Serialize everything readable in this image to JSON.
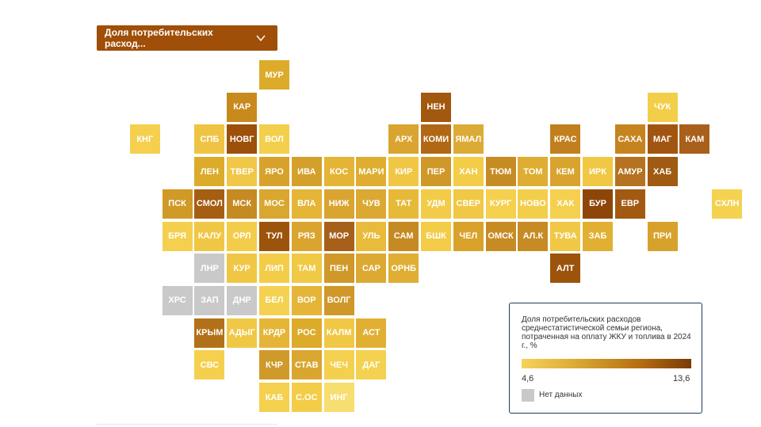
{
  "indicator_dropdown": {
    "label": "Доля потребительских расход...",
    "chevron_icon": "chevron-down-icon"
  },
  "legend": {
    "title": "Доля потребительских расходов среднестатистической семьи региона, потраченная на оплату ЖКУ и топлива в 2024 г., %",
    "min": "4,6",
    "max": "13,6",
    "no_data_label": "Нет данных",
    "no_data_color": "#c9c9c9",
    "scale_colors": [
      "#f5d45a",
      "#d8a530",
      "#b56d12",
      "#7a3a05"
    ]
  },
  "regions": [
    {
      "label": "МУР",
      "row": 1,
      "col": 6,
      "color": "#dcab2a"
    },
    {
      "label": "КАР",
      "row": 2,
      "col": 5,
      "color": "#c88a1c"
    },
    {
      "label": "НЕН",
      "row": 2,
      "col": 11,
      "color": "#a35810"
    },
    {
      "label": "ЧУК",
      "row": 2,
      "col": 18,
      "color": "#f3ce48"
    },
    {
      "label": "КНГ",
      "row": 3,
      "col": 2,
      "color": "#f4d04e"
    },
    {
      "label": "СПБ",
      "row": 3,
      "col": 4,
      "color": "#efc444"
    },
    {
      "label": "НОВГ",
      "row": 3,
      "col": 5,
      "color": "#9c500a"
    },
    {
      "label": "ВОЛ",
      "row": 3,
      "col": 6,
      "color": "#f3cf4c"
    },
    {
      "label": "АРХ",
      "row": 3,
      "col": 10,
      "color": "#d9a530"
    },
    {
      "label": "КОМИ",
      "row": 3,
      "col": 11,
      "color": "#b06814"
    },
    {
      "label": "ЯМАЛ",
      "row": 3,
      "col": 12,
      "color": "#dcab35"
    },
    {
      "label": "КРАС",
      "row": 3,
      "col": 15,
      "color": "#c27f1d"
    },
    {
      "label": "САХА",
      "row": 3,
      "col": 17,
      "color": "#c68420"
    },
    {
      "label": "МАГ",
      "row": 3,
      "col": 18,
      "color": "#a25510"
    },
    {
      "label": "КАМ",
      "row": 3,
      "col": 19,
      "color": "#a9601a"
    },
    {
      "label": "ЛЕН",
      "row": 4,
      "col": 4,
      "color": "#dcab2a"
    },
    {
      "label": "ТВЕР",
      "row": 4,
      "col": 5,
      "color": "#f0c747"
    },
    {
      "label": "ЯРО",
      "row": 4,
      "col": 6,
      "color": "#d7a22b"
    },
    {
      "label": "ИВА",
      "row": 4,
      "col": 7,
      "color": "#d4a02c"
    },
    {
      "label": "КОС",
      "row": 4,
      "col": 8,
      "color": "#e4b534"
    },
    {
      "label": "МАРИ",
      "row": 4,
      "col": 9,
      "color": "#dfae31"
    },
    {
      "label": "КИР",
      "row": 4,
      "col": 10,
      "color": "#f0c744"
    },
    {
      "label": "ПЕР",
      "row": 4,
      "col": 11,
      "color": "#cf9828"
    },
    {
      "label": "ХАН",
      "row": 4,
      "col": 12,
      "color": "#f3cd48"
    },
    {
      "label": "ТЮМ",
      "row": 4,
      "col": 13,
      "color": "#c68c24"
    },
    {
      "label": "ТОМ",
      "row": 4,
      "col": 14,
      "color": "#dead32"
    },
    {
      "label": "КЕМ",
      "row": 4,
      "col": 15,
      "color": "#d8a42e"
    },
    {
      "label": "ИРК",
      "row": 4,
      "col": 16,
      "color": "#f0c844"
    },
    {
      "label": "АМУР",
      "row": 4,
      "col": 17,
      "color": "#b57220"
    },
    {
      "label": "ХАБ",
      "row": 4,
      "col": 18,
      "color": "#a05a12"
    },
    {
      "label": "ПСК",
      "row": 5,
      "col": 3,
      "color": "#d09a26"
    },
    {
      "label": "СМОЛ",
      "row": 5,
      "col": 4,
      "color": "#a65e12"
    },
    {
      "label": "МСК",
      "row": 5,
      "col": 5,
      "color": "#c68a23"
    },
    {
      "label": "МОС",
      "row": 5,
      "col": 6,
      "color": "#d9a62f"
    },
    {
      "label": "ВЛА",
      "row": 5,
      "col": 7,
      "color": "#e5b537"
    },
    {
      "label": "НИЖ",
      "row": 5,
      "col": 8,
      "color": "#d9a530"
    },
    {
      "label": "ЧУВ",
      "row": 5,
      "col": 9,
      "color": "#dba832"
    },
    {
      "label": "ТАТ",
      "row": 5,
      "col": 10,
      "color": "#e7b938"
    },
    {
      "label": "УДМ",
      "row": 5,
      "col": 11,
      "color": "#f2cc48"
    },
    {
      "label": "СВЕР",
      "row": 5,
      "col": 12,
      "color": "#f0c845"
    },
    {
      "label": "КУРГ",
      "row": 5,
      "col": 13,
      "color": "#f4d04e"
    },
    {
      "label": "НОВО",
      "row": 5,
      "col": 14,
      "color": "#f3ce4a"
    },
    {
      "label": "ХАК",
      "row": 5,
      "col": 15,
      "color": "#f4d04e"
    },
    {
      "label": "БУР",
      "row": 5,
      "col": 16,
      "color": "#8e4508"
    },
    {
      "label": "ЕВР",
      "row": 5,
      "col": 17,
      "color": "#a25a12"
    },
    {
      "label": "СХЛН",
      "row": 5,
      "col": 20,
      "color": "#f4d250"
    },
    {
      "label": "БРЯ",
      "row": 6,
      "col": 3,
      "color": "#f4d04e"
    },
    {
      "label": "КАЛУ",
      "row": 6,
      "col": 4,
      "color": "#f0c745"
    },
    {
      "label": "ОРЛ",
      "row": 6,
      "col": 5,
      "color": "#f3cd4a"
    },
    {
      "label": "ТУЛ",
      "row": 6,
      "col": 6,
      "color": "#9c530c"
    },
    {
      "label": "РЯЗ",
      "row": 6,
      "col": 7,
      "color": "#d9a52e"
    },
    {
      "label": "МОР",
      "row": 6,
      "col": 8,
      "color": "#a6601a"
    },
    {
      "label": "УЛЬ",
      "row": 6,
      "col": 9,
      "color": "#e9bb3a"
    },
    {
      "label": "САМ",
      "row": 6,
      "col": 10,
      "color": "#c68a23"
    },
    {
      "label": "БШК",
      "row": 6,
      "col": 11,
      "color": "#f3cc48"
    },
    {
      "label": "ЧЕЛ",
      "row": 6,
      "col": 12,
      "color": "#d9a22a"
    },
    {
      "label": "ОМСК",
      "row": 6,
      "col": 13,
      "color": "#c78b24"
    },
    {
      "label": "АЛ.К",
      "row": 6,
      "col": 14,
      "color": "#c78b24"
    },
    {
      "label": "ТУВА",
      "row": 6,
      "col": 15,
      "color": "#f0c845"
    },
    {
      "label": "ЗАБ",
      "row": 6,
      "col": 16,
      "color": "#e1b033"
    },
    {
      "label": "ПРИ",
      "row": 6,
      "col": 18,
      "color": "#d7a22b"
    },
    {
      "label": "ЛНР",
      "row": 7,
      "col": 4,
      "color": "#c9c9c9"
    },
    {
      "label": "КУР",
      "row": 7,
      "col": 5,
      "color": "#f0c744"
    },
    {
      "label": "ЛИП",
      "row": 7,
      "col": 6,
      "color": "#f3cd48"
    },
    {
      "label": "ТАМ",
      "row": 7,
      "col": 7,
      "color": "#f0c945"
    },
    {
      "label": "ПЕН",
      "row": 7,
      "col": 8,
      "color": "#cf9828"
    },
    {
      "label": "САР",
      "row": 7,
      "col": 9,
      "color": "#dcaa32"
    },
    {
      "label": "ОРНБ",
      "row": 7,
      "col": 10,
      "color": "#dfae33"
    },
    {
      "label": "АЛТ",
      "row": 7,
      "col": 15,
      "color": "#9c530c"
    },
    {
      "label": "ХРС",
      "row": 8,
      "col": 3,
      "color": "#c9c9c9"
    },
    {
      "label": "ЗАП",
      "row": 8,
      "col": 4,
      "color": "#c9c9c9"
    },
    {
      "label": "ДНР",
      "row": 8,
      "col": 5,
      "color": "#c9c9c9"
    },
    {
      "label": "БЕЛ",
      "row": 8,
      "col": 6,
      "color": "#f4d250"
    },
    {
      "label": "ВОР",
      "row": 8,
      "col": 7,
      "color": "#e4b537"
    },
    {
      "label": "ВОЛГ",
      "row": 8,
      "col": 8,
      "color": "#cf9828"
    },
    {
      "label": "КРЫМ",
      "row": 9,
      "col": 4,
      "color": "#b27119"
    },
    {
      "label": "АДЫГ",
      "row": 9,
      "col": 5,
      "color": "#f0c845"
    },
    {
      "label": "КРДР",
      "row": 9,
      "col": 6,
      "color": "#e4b537"
    },
    {
      "label": "РОС",
      "row": 9,
      "col": 7,
      "color": "#dcab2a"
    },
    {
      "label": "КАЛМ",
      "row": 9,
      "col": 8,
      "color": "#f0c845"
    },
    {
      "label": "АСТ",
      "row": 9,
      "col": 9,
      "color": "#e1b033"
    },
    {
      "label": "СВС",
      "row": 10,
      "col": 4,
      "color": "#f4d04e"
    },
    {
      "label": "КЧР",
      "row": 10,
      "col": 6,
      "color": "#cf9a2a"
    },
    {
      "label": "СТАВ",
      "row": 10,
      "col": 7,
      "color": "#d9a62f"
    },
    {
      "label": "ЧЕЧ",
      "row": 10,
      "col": 8,
      "color": "#f4d04e"
    },
    {
      "label": "ДАГ",
      "row": 10,
      "col": 9,
      "color": "#f4d250"
    },
    {
      "label": "КАБ",
      "row": 11,
      "col": 6,
      "color": "#f4d04e"
    },
    {
      "label": "С.ОС",
      "row": 11,
      "col": 7,
      "color": "#f3cd48"
    },
    {
      "label": "ИНГ",
      "row": 11,
      "col": 8,
      "color": "#f7de70"
    }
  ]
}
